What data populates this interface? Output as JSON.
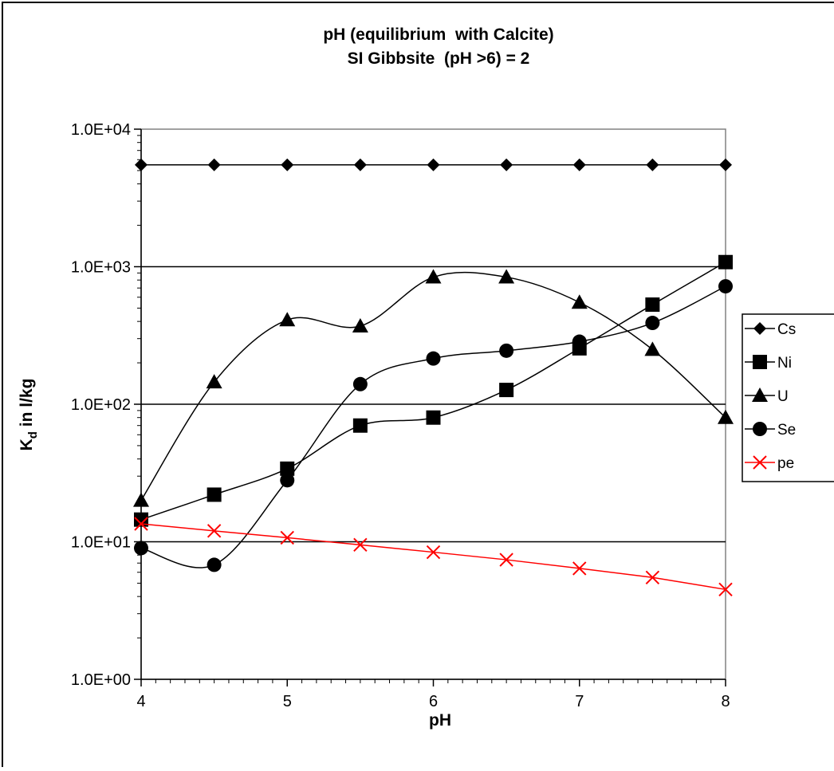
{
  "chart_data": {
    "type": "line",
    "title_lines": [
      "pH (equilibrium  with Calcite)",
      "SI Gibbsite  (pH >6) = 2"
    ],
    "xlabel": "pH",
    "ylabel": {
      "main": "K",
      "sub": "d",
      "rest": " in l/kg"
    },
    "x_scale": "linear",
    "y_scale": "log",
    "xlim": [
      4,
      8
    ],
    "ylim": [
      1,
      10000
    ],
    "x_ticks": [
      4,
      5,
      6,
      7,
      8
    ],
    "x_tick_labels": [
      "4",
      "5",
      "6",
      "7",
      "8"
    ],
    "y_ticks": [
      1,
      10,
      100,
      1000,
      10000
    ],
    "y_tick_labels": [
      "1.0E+00",
      "1.0E+01",
      "1.0E+02",
      "1.0E+03",
      "1.0E+04"
    ],
    "grid": "horizontal major",
    "legend_position": "right",
    "x": [
      4,
      4.5,
      5,
      5.5,
      6,
      6.5,
      7,
      7.5,
      8
    ],
    "series": [
      {
        "name": "Cs",
        "marker": "diamond",
        "color": "#000000",
        "values": [
          5500,
          5500,
          5500,
          5500,
          5500,
          5500,
          5500,
          5500,
          5500
        ]
      },
      {
        "name": "Ni",
        "marker": "square",
        "color": "#000000",
        "values": [
          14.5,
          22,
          34,
          70,
          80,
          127,
          255,
          530,
          1080
        ]
      },
      {
        "name": "U",
        "marker": "triangle",
        "color": "#000000",
        "values": [
          20,
          145,
          410,
          370,
          840,
          840,
          550,
          250,
          80
        ]
      },
      {
        "name": "Se",
        "marker": "circle",
        "color": "#000000",
        "values": [
          9,
          6.8,
          28,
          140,
          215,
          245,
          285,
          390,
          720
        ]
      },
      {
        "name": "pe",
        "marker": "x",
        "color": "#ff0000",
        "values": [
          13.5,
          12,
          10.7,
          9.5,
          8.4,
          7.4,
          6.4,
          5.5,
          4.5
        ]
      }
    ]
  }
}
